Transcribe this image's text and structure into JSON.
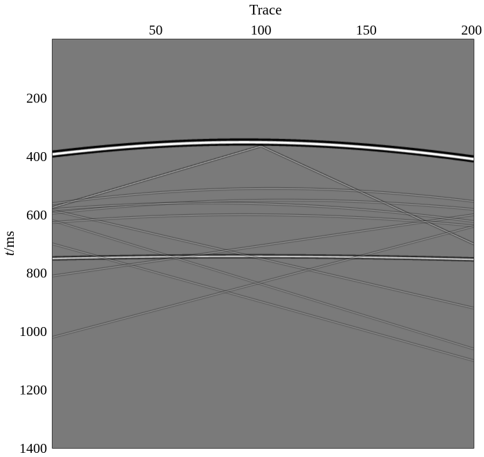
{
  "chart_data": {
    "type": "heatmap",
    "title": "",
    "xlabel": "Trace",
    "ylabel_italic": "t",
    "ylabel_rest": "/ms",
    "x_axis_position": "top",
    "y_axis_reversed": true,
    "xlim": [
      1,
      201
    ],
    "ylim": [
      0,
      1400
    ],
    "x_ticks": [
      50,
      100,
      150,
      200
    ],
    "y_ticks": [
      200,
      400,
      600,
      800,
      1000,
      1200,
      1400
    ],
    "colormap": "grayscale",
    "background_color": "#7a7a7a",
    "grid": false,
    "legend": "none",
    "events": [
      {
        "kind": "hyperbola",
        "apex_trace": 92,
        "apex_time_ms": 350,
        "velocity_m_per_ms": 2.6,
        "trace_spacing_m": 5,
        "strength": 1.0
      },
      {
        "kind": "hyperbola",
        "apex_trace": 92,
        "apex_time_ms": 742,
        "velocity_m_per_ms": 4.3,
        "trace_spacing_m": 5,
        "strength": 0.6
      },
      {
        "kind": "line",
        "trace_start": 1,
        "time_start_ms": 575,
        "trace_end": 100,
        "time_end_ms": 365,
        "strength": 0.35
      },
      {
        "kind": "line",
        "trace_start": 100,
        "time_start_ms": 365,
        "trace_end": 201,
        "time_end_ms": 700,
        "strength": 0.35
      },
      {
        "kind": "line",
        "trace_start": 1,
        "time_start_ms": 585,
        "trace_end": 201,
        "time_end_ms": 920,
        "strength": 0.18
      },
      {
        "kind": "line",
        "trace_start": 1,
        "time_start_ms": 700,
        "trace_end": 201,
        "time_end_ms": 1100,
        "strength": 0.12
      },
      {
        "kind": "line",
        "trace_start": 201,
        "time_start_ms": 640,
        "trace_end": 1,
        "time_end_ms": 1020,
        "strength": 0.14
      },
      {
        "kind": "line",
        "trace_start": 201,
        "time_start_ms": 600,
        "trace_end": 1,
        "time_end_ms": 810,
        "strength": 0.16
      },
      {
        "kind": "line",
        "trace_start": 1,
        "time_start_ms": 620,
        "trace_end": 201,
        "time_end_ms": 1060,
        "strength": 0.1
      },
      {
        "kind": "hyperbola",
        "apex_trace": 105,
        "apex_time_ms": 510,
        "velocity_m_per_ms": 2.2,
        "trace_spacing_m": 5,
        "strength": 0.18
      },
      {
        "kind": "hyperbola",
        "apex_trace": 110,
        "apex_time_ms": 550,
        "velocity_m_per_ms": 2.4,
        "trace_spacing_m": 5,
        "strength": 0.12
      },
      {
        "kind": "hyperbola",
        "apex_trace": 75,
        "apex_time_ms": 560,
        "velocity_m_per_ms": 2.3,
        "trace_spacing_m": 5,
        "strength": 0.14
      },
      {
        "kind": "hyperbola",
        "apex_trace": 92,
        "apex_time_ms": 600,
        "velocity_m_per_ms": 2.5,
        "trace_spacing_m": 5,
        "strength": 0.12
      }
    ]
  }
}
